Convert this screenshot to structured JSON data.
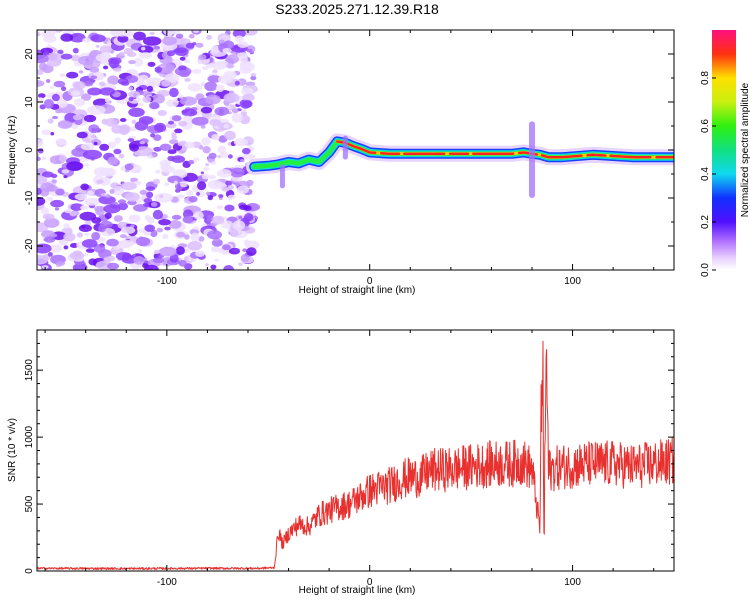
{
  "title": "S233.2025.271.12.39.R18",
  "colors": {
    "snr_line": "#e8312f",
    "noise_purple": "#7a1fff",
    "band_green": "#22ee44",
    "band_red": "#ff2020"
  },
  "chart_data": [
    {
      "type": "heatmap",
      "title": "S233.2025.271.12.39.R18",
      "xlabel": "Height of straight line (km)",
      "ylabel": "Frequency (Hz)",
      "xlim": [
        -164,
        150
      ],
      "ylim": [
        -25,
        25
      ],
      "xticks": [
        -100,
        0,
        100
      ],
      "yticks": [
        -20,
        -10,
        0,
        10,
        20
      ],
      "noise_region_x": [
        -164,
        -57
      ],
      "signal_track": {
        "x": [
          -57,
          -50,
          -45,
          -40,
          -35,
          -30,
          -25,
          -20,
          -16,
          -12,
          -8,
          -4,
          0,
          10,
          20,
          40,
          60,
          70,
          76,
          80,
          84,
          88,
          95,
          110,
          130,
          150
        ],
        "y": [
          -3.5,
          -3.3,
          -3,
          -2.5,
          -2.8,
          -2,
          -2.5,
          -0.5,
          1.8,
          1.5,
          0.8,
          0.2,
          -0.5,
          -0.8,
          -0.8,
          -0.8,
          -0.8,
          -0.8,
          -0.5,
          -0.8,
          -1,
          -1.5,
          -1.5,
          -1,
          -1.5,
          -1.5
        ]
      },
      "colorbar": {
        "label": "Normalized spectral amplitude",
        "range": [
          0,
          1
        ],
        "ticks": [
          0.0,
          0.2,
          0.4,
          0.6,
          0.8
        ]
      }
    },
    {
      "type": "line",
      "xlabel": "Height of straight line (km)",
      "ylabel": "SNR (10 * v/v)",
      "xlim": [
        -164,
        150
      ],
      "ylim": [
        0,
        1800
      ],
      "xticks": [
        -100,
        0,
        100
      ],
      "yticks": [
        0,
        500,
        1000,
        1500
      ],
      "series": [
        {
          "name": "SNR",
          "x": [
            -164,
            -120,
            -80,
            -55,
            -47,
            -45,
            -43,
            -40,
            -35,
            -30,
            -25,
            -20,
            -15,
            -10,
            -5,
            0,
            5,
            10,
            15,
            20,
            25,
            30,
            40,
            50,
            60,
            70,
            75,
            80,
            84,
            85,
            86,
            87,
            88,
            90,
            95,
            100,
            110,
            120,
            130,
            140,
            150
          ],
          "y": [
            20,
            18,
            20,
            20,
            25,
            300,
            200,
            280,
            350,
            330,
            420,
            450,
            480,
            500,
            550,
            600,
            620,
            640,
            680,
            700,
            700,
            750,
            760,
            780,
            800,
            800,
            820,
            760,
            300,
            1800,
            200,
            1700,
            750,
            760,
            780,
            790,
            800,
            800,
            780,
            800,
            820
          ]
        }
      ]
    }
  ]
}
